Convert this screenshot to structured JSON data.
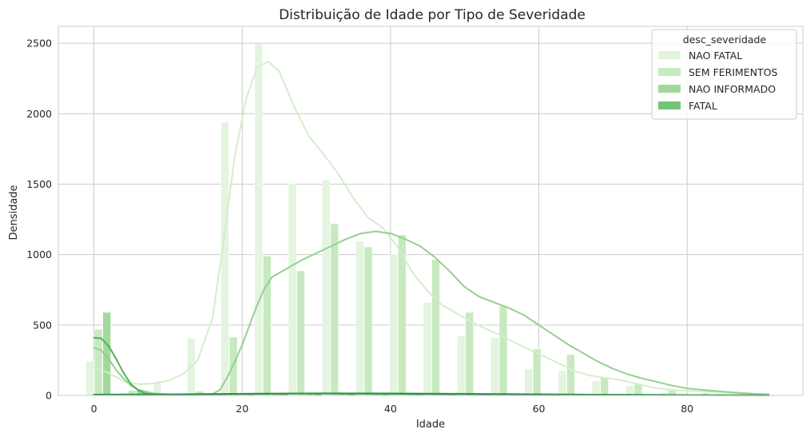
{
  "chart_data": {
    "type": "bar",
    "title": "Distribuição de Idade por Tipo de Severidade",
    "xlabel": "Idade",
    "ylabel": "Densidade",
    "xlim": [
      -4.8,
      95.6
    ],
    "ylim": [
      0,
      2620
    ],
    "xticks": [
      0,
      20,
      40,
      60,
      80
    ],
    "yticks": [
      0,
      500,
      1000,
      1500,
      2000,
      2500
    ],
    "grid": true,
    "legend": {
      "title": "desc_severidade",
      "placement": "top-right",
      "entries": [
        "NAO FATAL",
        "SEM FERIMENTOS",
        "NAO INFORMADO",
        "FATAL"
      ]
    },
    "bin_centers": [
      1.2,
      5.75,
      10.3,
      14.85,
      19.4,
      23.95,
      28.5,
      33.05,
      37.6,
      42.15,
      46.7,
      51.25,
      55.8,
      60.35,
      64.9,
      69.45,
      74.0,
      78.55,
      83.1,
      87.65,
      92.2
    ],
    "series": [
      {
        "name": "NAO FATAL",
        "color": "#e3f4df",
        "values": [
          245,
          20,
          100,
          405,
          1940,
          2495,
          1505,
          1530,
          1095,
          1000,
          660,
          425,
          410,
          190,
          175,
          105,
          70,
          20,
          10,
          5,
          2
        ],
        "kde": [
          [
            0,
            200
          ],
          [
            2,
            160
          ],
          [
            4,
            100
          ],
          [
            6,
            80
          ],
          [
            8,
            85
          ],
          [
            10,
            105
          ],
          [
            12,
            150
          ],
          [
            14,
            250
          ],
          [
            16,
            550
          ],
          [
            17.5,
            1100
          ],
          [
            19,
            1700
          ],
          [
            20.5,
            2100
          ],
          [
            22,
            2330
          ],
          [
            23.5,
            2370
          ],
          [
            25,
            2300
          ],
          [
            27,
            2050
          ],
          [
            29,
            1840
          ],
          [
            31,
            1710
          ],
          [
            33,
            1570
          ],
          [
            35,
            1400
          ],
          [
            37,
            1260
          ],
          [
            39,
            1190
          ],
          [
            41,
            1050
          ],
          [
            43,
            870
          ],
          [
            45,
            740
          ],
          [
            47,
            640
          ],
          [
            49,
            580
          ],
          [
            51,
            520
          ],
          [
            53,
            470
          ],
          [
            55,
            420
          ],
          [
            57,
            370
          ],
          [
            59,
            320
          ],
          [
            61,
            270
          ],
          [
            63,
            220
          ],
          [
            65,
            170
          ],
          [
            67,
            140
          ],
          [
            69,
            125
          ],
          [
            71,
            110
          ],
          [
            73,
            85
          ],
          [
            75,
            60
          ],
          [
            77,
            45
          ],
          [
            79,
            35
          ],
          [
            82,
            28
          ],
          [
            85,
            22
          ],
          [
            88,
            14
          ],
          [
            91,
            6
          ]
        ]
      },
      {
        "name": "SEM FERIMENTOS",
        "color": "#c7e9c0",
        "values": [
          470,
          35,
          5,
          30,
          415,
          990,
          885,
          1220,
          1055,
          1140,
          965,
          590,
          635,
          330,
          290,
          130,
          80,
          35,
          15,
          5,
          2
        ],
        "kde": [
          [
            0,
            340
          ],
          [
            1,
            320
          ],
          [
            2,
            260
          ],
          [
            3,
            180
          ],
          [
            4,
            120
          ],
          [
            5,
            70
          ],
          [
            6,
            40
          ],
          [
            8,
            15
          ],
          [
            10,
            8
          ],
          [
            12,
            5
          ],
          [
            14,
            5
          ],
          [
            16,
            10
          ],
          [
            17,
            40
          ],
          [
            18,
            130
          ],
          [
            19,
            240
          ],
          [
            20,
            360
          ],
          [
            21,
            500
          ],
          [
            22,
            640
          ],
          [
            23,
            760
          ],
          [
            24,
            840
          ],
          [
            26,
            900
          ],
          [
            28,
            960
          ],
          [
            30,
            1010
          ],
          [
            32,
            1060
          ],
          [
            34,
            1110
          ],
          [
            36,
            1150
          ],
          [
            38,
            1165
          ],
          [
            40,
            1150
          ],
          [
            42,
            1110
          ],
          [
            44,
            1060
          ],
          [
            46,
            980
          ],
          [
            48,
            880
          ],
          [
            50,
            770
          ],
          [
            52,
            700
          ],
          [
            54,
            660
          ],
          [
            56,
            620
          ],
          [
            58,
            570
          ],
          [
            60,
            500
          ],
          [
            62,
            430
          ],
          [
            64,
            360
          ],
          [
            66,
            300
          ],
          [
            68,
            240
          ],
          [
            70,
            190
          ],
          [
            72,
            150
          ],
          [
            74,
            120
          ],
          [
            76,
            95
          ],
          [
            78,
            70
          ],
          [
            80,
            50
          ],
          [
            83,
            35
          ],
          [
            86,
            22
          ],
          [
            89,
            12
          ],
          [
            91,
            8
          ]
        ]
      },
      {
        "name": "NAO INFORMADO",
        "color": "#a1d99b",
        "values": [
          590,
          40,
          3,
          5,
          5,
          10,
          10,
          15,
          15,
          15,
          15,
          10,
          8,
          5,
          3,
          2,
          1,
          1,
          0,
          0,
          0
        ],
        "kde": [
          [
            0,
            410
          ],
          [
            1,
            405
          ],
          [
            2,
            350
          ],
          [
            3,
            260
          ],
          [
            4,
            160
          ],
          [
            5,
            80
          ],
          [
            6,
            35
          ],
          [
            7,
            15
          ],
          [
            8,
            8
          ],
          [
            10,
            5
          ],
          [
            20,
            10
          ],
          [
            30,
            15
          ],
          [
            40,
            15
          ],
          [
            50,
            12
          ],
          [
            60,
            8
          ],
          [
            70,
            5
          ],
          [
            80,
            3
          ],
          [
            91,
            2
          ]
        ]
      },
      {
        "name": "FATAL",
        "color": "#74c476",
        "values": [
          5,
          3,
          2,
          4,
          8,
          10,
          12,
          12,
          10,
          10,
          8,
          8,
          6,
          4,
          3,
          2,
          1,
          1,
          0,
          0,
          0
        ],
        "kde": [
          [
            0,
            6
          ],
          [
            10,
            8
          ],
          [
            20,
            12
          ],
          [
            30,
            14
          ],
          [
            40,
            12
          ],
          [
            50,
            10
          ],
          [
            60,
            8
          ],
          [
            70,
            5
          ],
          [
            80,
            3
          ],
          [
            91,
            1
          ]
        ]
      }
    ],
    "kde_line_colors": [
      "#d4eecd",
      "#95d08f",
      "#52b15f",
      "#2f8f4a"
    ]
  }
}
